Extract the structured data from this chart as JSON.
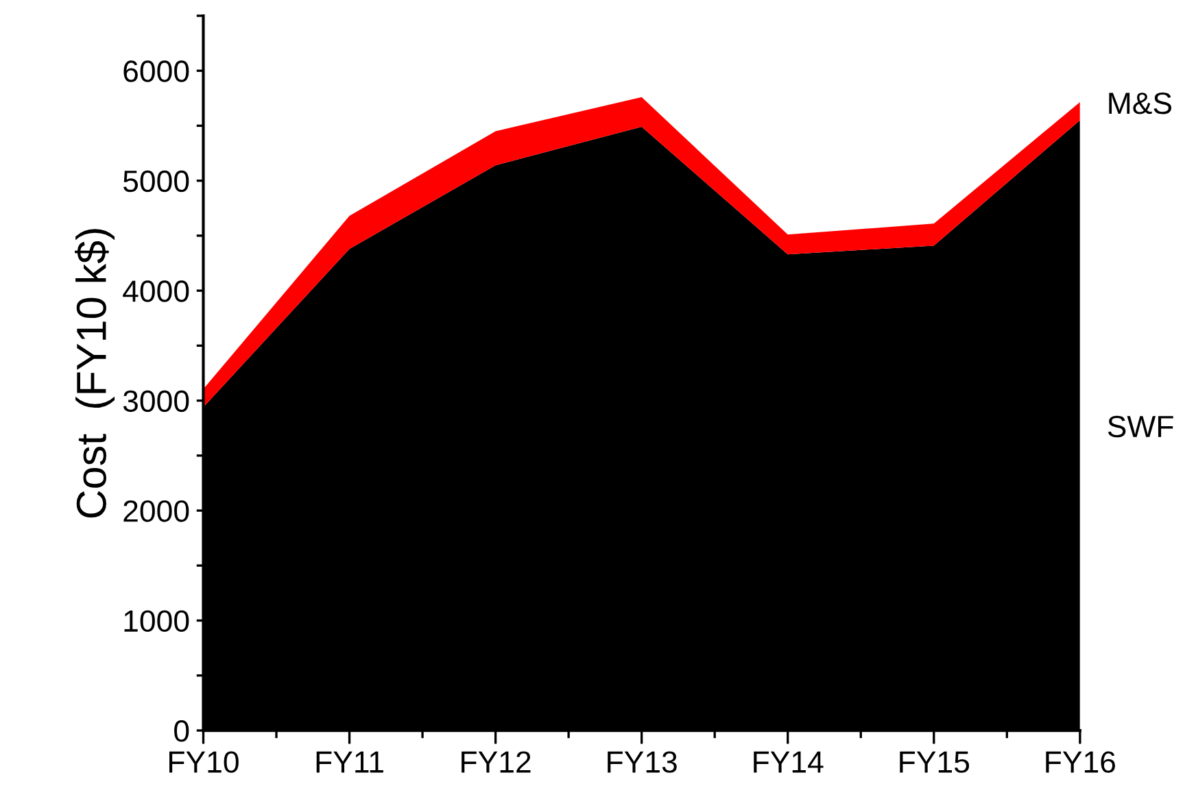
{
  "chart_data": {
    "type": "area",
    "stacked": true,
    "ylabel": "Cost  (FY10 k$)",
    "categories": [
      "FY10",
      "FY11",
      "FY12",
      "FY13",
      "FY14",
      "FY15",
      "FY16"
    ],
    "series": [
      {
        "name": "SWF",
        "color": "#000000",
        "values": [
          2940,
          4380,
          5140,
          5490,
          4330,
          4410,
          5550
        ]
      },
      {
        "name": "M&S",
        "color": "#ff0000",
        "values": [
          165,
          300,
          310,
          270,
          180,
          200,
          165
        ]
      }
    ],
    "ylim": [
      0,
      6500
    ],
    "yticks": [
      0,
      {
        "value": 500,
        "label": null
      },
      1000,
      {
        "value": 1500,
        "label": null
      },
      2000,
      {
        "value": 2500,
        "label": null
      },
      3000,
      {
        "value": 3500,
        "label": null
      },
      4000,
      {
        "value": 4500,
        "label": null
      },
      5000,
      {
        "value": 5500,
        "label": null
      },
      6000,
      {
        "value": 6500,
        "label": null
      }
    ],
    "grid": false,
    "legend": false
  }
}
